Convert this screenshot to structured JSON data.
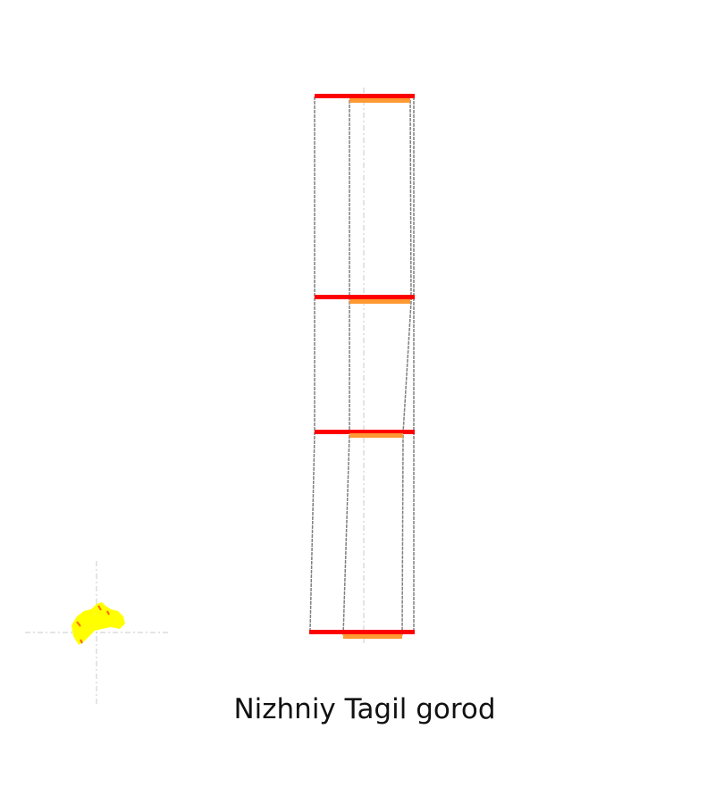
{
  "title": "Nizhniy Tagil gorod",
  "colors": {
    "primary_bar": "#ff0000",
    "secondary_bar": "#ff9933",
    "outline": "#808080",
    "axis": "#c8c8c8",
    "blob": "#ffff00",
    "blob_accent": "#ff6600"
  },
  "icons": [
    "location-blob-icon"
  ]
}
